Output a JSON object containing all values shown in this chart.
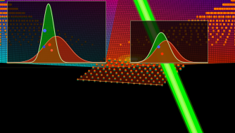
{
  "bg": "#000000",
  "fw": 3.34,
  "fh": 1.89,
  "dpi": 100,
  "laser_green": "#00ff00",
  "laser_bright": "#aaff00",
  "left_sub_colors": [
    "#00cccc",
    "#009999",
    "#ff00ff",
    "#330066"
  ],
  "right_sub_colors": [
    "#ff4400",
    "#cc2200",
    "#440088",
    "#220044"
  ],
  "flake_color": "#cc3300",
  "atom_orange": "#ff6600",
  "atom_teal": "#007755",
  "atom_dark": "#004433",
  "peak_bg": "#080808",
  "peak_green_fill": "#00aa00",
  "peak_red_fill": "#cc2200",
  "peak_outline": "#ccccaa",
  "dot_blue": "#3355ff",
  "dot_red": "#ff2200"
}
